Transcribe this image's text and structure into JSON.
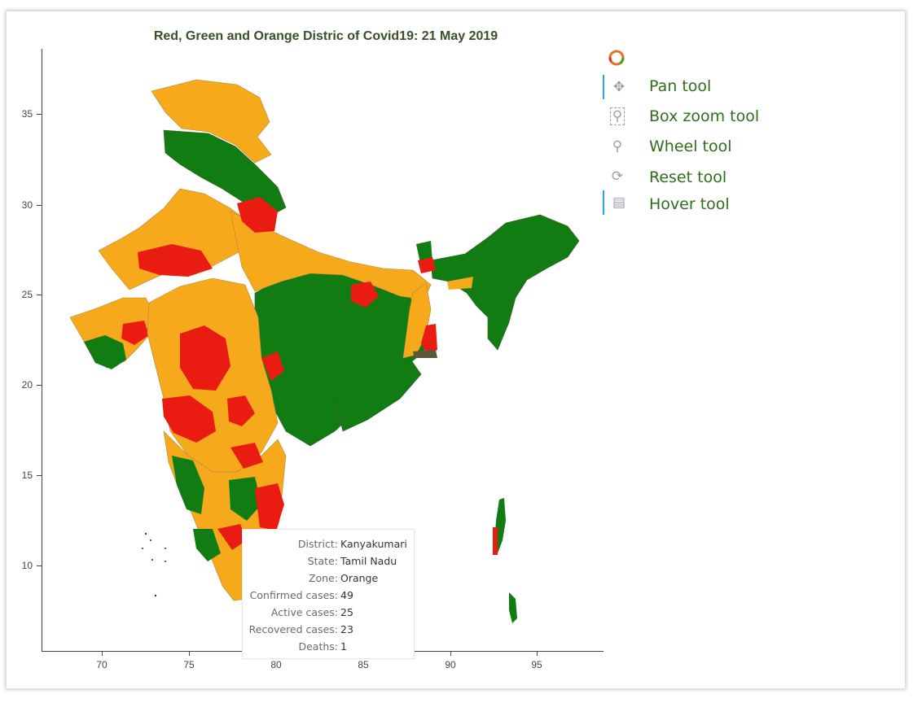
{
  "title": "Red, Green and Orange Distric of Covid19: 21 May 2019",
  "colors": {
    "red_zone": "#ea1c12",
    "green_zone": "#117c12",
    "orange_zone": "#f7a91c",
    "title": "#3a4f26",
    "annotation": "#2e6e1b"
  },
  "axes": {
    "x_ticks": [
      "70",
      "75",
      "80",
      "85",
      "90",
      "95"
    ],
    "y_ticks": [
      "35",
      "30",
      "25",
      "20",
      "15",
      "10"
    ]
  },
  "toolbar": {
    "logo_icon": "bokeh-logo-icon",
    "tools": [
      {
        "icon": "pan-icon",
        "label": "Pan tool"
      },
      {
        "icon": "box-zoom-icon",
        "label": "Box zoom tool"
      },
      {
        "icon": "wheel-zoom-icon",
        "label": "Wheel tool"
      },
      {
        "icon": "reset-icon",
        "label": "Reset tool"
      },
      {
        "icon": "hover-icon",
        "label": "Hover tool"
      }
    ]
  },
  "tooltip": {
    "rows": [
      {
        "key": "District:",
        "value": "Kanyakumari"
      },
      {
        "key": "State:",
        "value": "Tamil Nadu"
      },
      {
        "key": "Zone:",
        "value": "Orange"
      },
      {
        "key": "Confirmed cases:",
        "value": "49"
      },
      {
        "key": "Active cases:",
        "value": "25"
      },
      {
        "key": "Recovered cases:",
        "value": "23"
      },
      {
        "key": "Deaths:",
        "value": "1"
      }
    ]
  }
}
